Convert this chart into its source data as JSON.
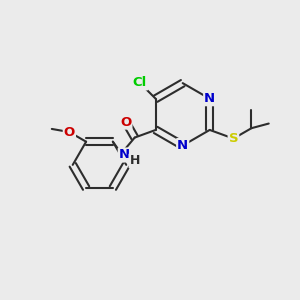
{
  "bg_color": "#ebebeb",
  "bond_color": "#2d2d2d",
  "bond_width": 1.5,
  "atom_colors": {
    "N": "#0000cc",
    "O": "#cc0000",
    "S": "#cccc00",
    "Cl": "#00cc00"
  },
  "font_size": 9.5,
  "fig_size": [
    3.0,
    3.0
  ],
  "dpi": 100
}
